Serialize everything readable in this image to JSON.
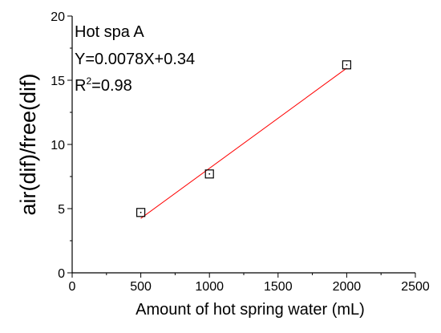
{
  "chart_data": {
    "type": "scatter",
    "title": "",
    "xlabel": "Amount of hot spring water (mL)",
    "ylabel": "air(dif)/free(dif)",
    "xlim": [
      0,
      2500
    ],
    "ylim": [
      0,
      20
    ],
    "xticks": [
      0,
      500,
      1000,
      1500,
      2000,
      2500
    ],
    "yticks": [
      0,
      5,
      10,
      15,
      20
    ],
    "grid": false,
    "series": [
      {
        "x": [
          500,
          1000,
          2000
        ],
        "y": [
          4.7,
          7.7,
          16.2
        ],
        "marker": "open-square",
        "color": "#000000"
      }
    ],
    "fit_line": {
      "slope": 0.0078,
      "intercept": 0.34,
      "x_range": [
        500,
        2000
      ],
      "color": "#ff0000"
    },
    "annotations": {
      "name": "Hot spa A",
      "equation": "Y=0.0078X+0.34",
      "r2_prefix": "R",
      "r2_sup": "2",
      "r2_value": "=0.98"
    }
  }
}
